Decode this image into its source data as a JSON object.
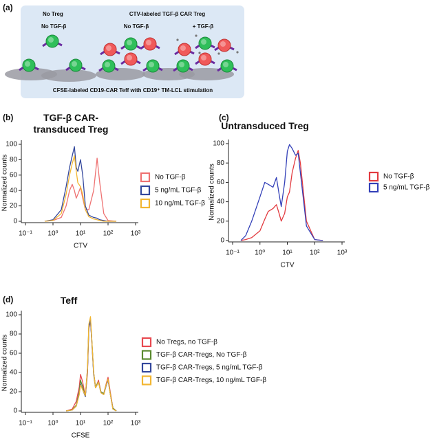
{
  "panel_labels": [
    "(a)",
    "(b)",
    "(c)",
    "(d)"
  ],
  "diagram": {
    "no_treg": "No Treg",
    "no_tgf_left": "No TGF-β",
    "treg_label": "CTV-labeled TGF-β CAR Treg",
    "no_tgf_mid": "No TGF-β",
    "plus_tgf": "+ TGF-β",
    "footer": "CFSE-labeled CD19-CAR Teff with CD19⁺ TM-LCL stimulation"
  },
  "chart_data": [
    {
      "type": "line",
      "title": "TGF-β CAR-transduced Treg",
      "xlabel": "CTV",
      "ylabel": "Normalized counts",
      "x_scale": "log",
      "xlim": [
        0.1,
        1000
      ],
      "xticks": [
        {
          "value": 0.1,
          "label": "10⁻¹"
        },
        {
          "value": 1,
          "label": "10⁰"
        },
        {
          "value": 10,
          "label": "10¹"
        },
        {
          "value": 100,
          "label": "10²"
        },
        {
          "value": 1000,
          "label": "10³"
        }
      ],
      "ylim": [
        0,
        100
      ],
      "yticks": [
        0,
        20,
        40,
        60,
        80,
        100
      ],
      "legend": "right",
      "x": [
        0.5,
        1,
        2,
        3,
        4,
        5,
        6,
        7,
        8,
        10,
        12,
        15,
        20,
        30,
        40,
        50,
        70,
        100,
        200
      ],
      "series": [
        {
          "name": "No TGF-β",
          "color": "#ee7272",
          "values": [
            0,
            1,
            5,
            20,
            40,
            48,
            40,
            30,
            35,
            44,
            30,
            15,
            15,
            40,
            82,
            50,
            10,
            1,
            0
          ]
        },
        {
          "name": "5 ng/mL TGF-β",
          "color": "#33479c",
          "values": [
            0,
            2,
            15,
            45,
            70,
            85,
            97,
            70,
            65,
            80,
            60,
            20,
            8,
            5,
            4,
            2,
            1,
            0,
            0
          ]
        },
        {
          "name": "10 ng/mL TGF-β",
          "color": "#f2b632",
          "values": [
            0,
            1,
            10,
            35,
            60,
            75,
            85,
            65,
            50,
            45,
            35,
            15,
            6,
            3,
            2,
            1,
            0,
            0,
            0
          ]
        }
      ]
    },
    {
      "type": "line",
      "title": "Untransduced Treg",
      "xlabel": "CTV",
      "ylabel": "Normalized counts",
      "x_scale": "log",
      "xlim": [
        0.1,
        1000
      ],
      "xticks": [
        {
          "value": 0.1,
          "label": "10⁻¹"
        },
        {
          "value": 1,
          "label": "10⁰"
        },
        {
          "value": 10,
          "label": "10¹"
        },
        {
          "value": 100,
          "label": "10²"
        },
        {
          "value": 1000,
          "label": "10³"
        }
      ],
      "ylim": [
        0,
        100
      ],
      "yticks": [
        0,
        20,
        40,
        60,
        80,
        100
      ],
      "legend": "right",
      "x": [
        0.2,
        0.3,
        0.5,
        1,
        1.5,
        2,
        3,
        4,
        5,
        6,
        8,
        10,
        12,
        15,
        20,
        25,
        30,
        50,
        100,
        200
      ],
      "series": [
        {
          "name": "No TGF-β",
          "color": "#e23a3f",
          "values": [
            0,
            1,
            3,
            10,
            22,
            30,
            33,
            37,
            28,
            20,
            28,
            45,
            50,
            70,
            85,
            93,
            80,
            20,
            1,
            0
          ]
        },
        {
          "name": "5 ng/mL TGF-β",
          "color": "#3340b8",
          "values": [
            0,
            5,
            20,
            45,
            60,
            58,
            55,
            65,
            48,
            35,
            60,
            92,
            99,
            95,
            88,
            90,
            70,
            15,
            1,
            0
          ]
        }
      ]
    },
    {
      "type": "line",
      "title": "Teff",
      "xlabel": "CFSE",
      "ylabel": "Normalized counts",
      "x_scale": "log",
      "xlim": [
        0.1,
        1000
      ],
      "xticks": [
        {
          "value": 0.1,
          "label": "10⁻¹"
        },
        {
          "value": 1,
          "label": "10⁰"
        },
        {
          "value": 10,
          "label": "10¹"
        },
        {
          "value": 100,
          "label": "10²"
        },
        {
          "value": 1000,
          "label": "10³"
        }
      ],
      "ylim": [
        0,
        100
      ],
      "yticks": [
        0,
        20,
        40,
        60,
        80,
        100
      ],
      "legend": "right",
      "x": [
        3,
        5,
        7,
        9,
        10,
        12,
        15,
        18,
        20,
        23,
        26,
        30,
        35,
        40,
        45,
        55,
        70,
        85,
        100,
        120,
        150,
        200
      ],
      "series": [
        {
          "name": "No Tregs, no TGF-β",
          "color": "#e8494f",
          "values": [
            0,
            2,
            10,
            25,
            38,
            30,
            15,
            40,
            85,
            95,
            70,
            40,
            25,
            28,
            32,
            20,
            18,
            28,
            35,
            20,
            3,
            0
          ]
        },
        {
          "name": "TGF-β CAR-Tregs, No TGF-β",
          "color": "#5a8a2e",
          "values": [
            0,
            1,
            6,
            20,
            32,
            25,
            15,
            45,
            88,
            96,
            72,
            40,
            25,
            28,
            30,
            20,
            18,
            27,
            33,
            18,
            3,
            0
          ]
        },
        {
          "name": "TGF-β CAR-Tregs, 5 ng/mL TGF-β",
          "color": "#33479c",
          "values": [
            0,
            1,
            5,
            18,
            28,
            22,
            15,
            43,
            86,
            94,
            70,
            38,
            24,
            27,
            30,
            19,
            17,
            26,
            32,
            18,
            2,
            0
          ]
        },
        {
          "name": "TGF-β CAR-Tregs, 10 ng/mL TGF-β",
          "color": "#f2b632",
          "values": [
            0,
            1,
            5,
            17,
            27,
            22,
            16,
            45,
            90,
            98,
            72,
            40,
            24,
            27,
            30,
            19,
            17,
            27,
            33,
            18,
            2,
            0
          ]
        }
      ]
    }
  ]
}
